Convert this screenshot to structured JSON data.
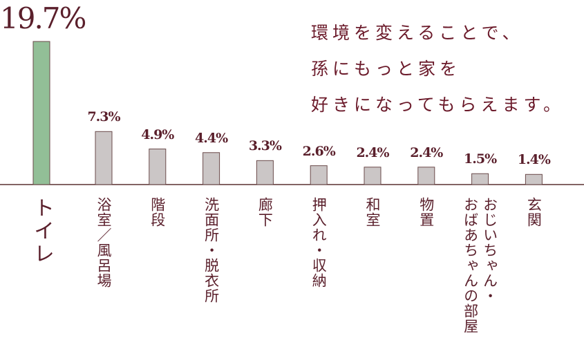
{
  "chart_data": {
    "type": "bar",
    "categories": [
      "トイレ",
      "浴室／風呂場",
      "階段",
      "洗面所・脱衣所",
      "廊下",
      "押入れ・収納",
      "和室",
      "物置",
      "おじいちゃん・\nおばあちゃんの部屋",
      "玄関"
    ],
    "values": [
      19.7,
      7.3,
      4.9,
      4.4,
      3.3,
      2.6,
      2.4,
      2.4,
      1.5,
      1.4
    ],
    "value_labels": [
      "19.7%",
      "7.3%",
      "4.9%",
      "4.4%",
      "3.3%",
      "2.6%",
      "2.4%",
      "2.4%",
      "1.5%",
      "1.4%"
    ],
    "colors": [
      "#92bf97",
      "#cbc6c6",
      "#cbc6c6",
      "#cbc6c6",
      "#cbc6c6",
      "#cbc6c6",
      "#cbc6c6",
      "#cbc6c6",
      "#cbc6c6",
      "#cbc6c6"
    ],
    "annotation": [
      "環境を変えることで、",
      "孫にもっと家を",
      "好きになってもらえます。"
    ]
  }
}
